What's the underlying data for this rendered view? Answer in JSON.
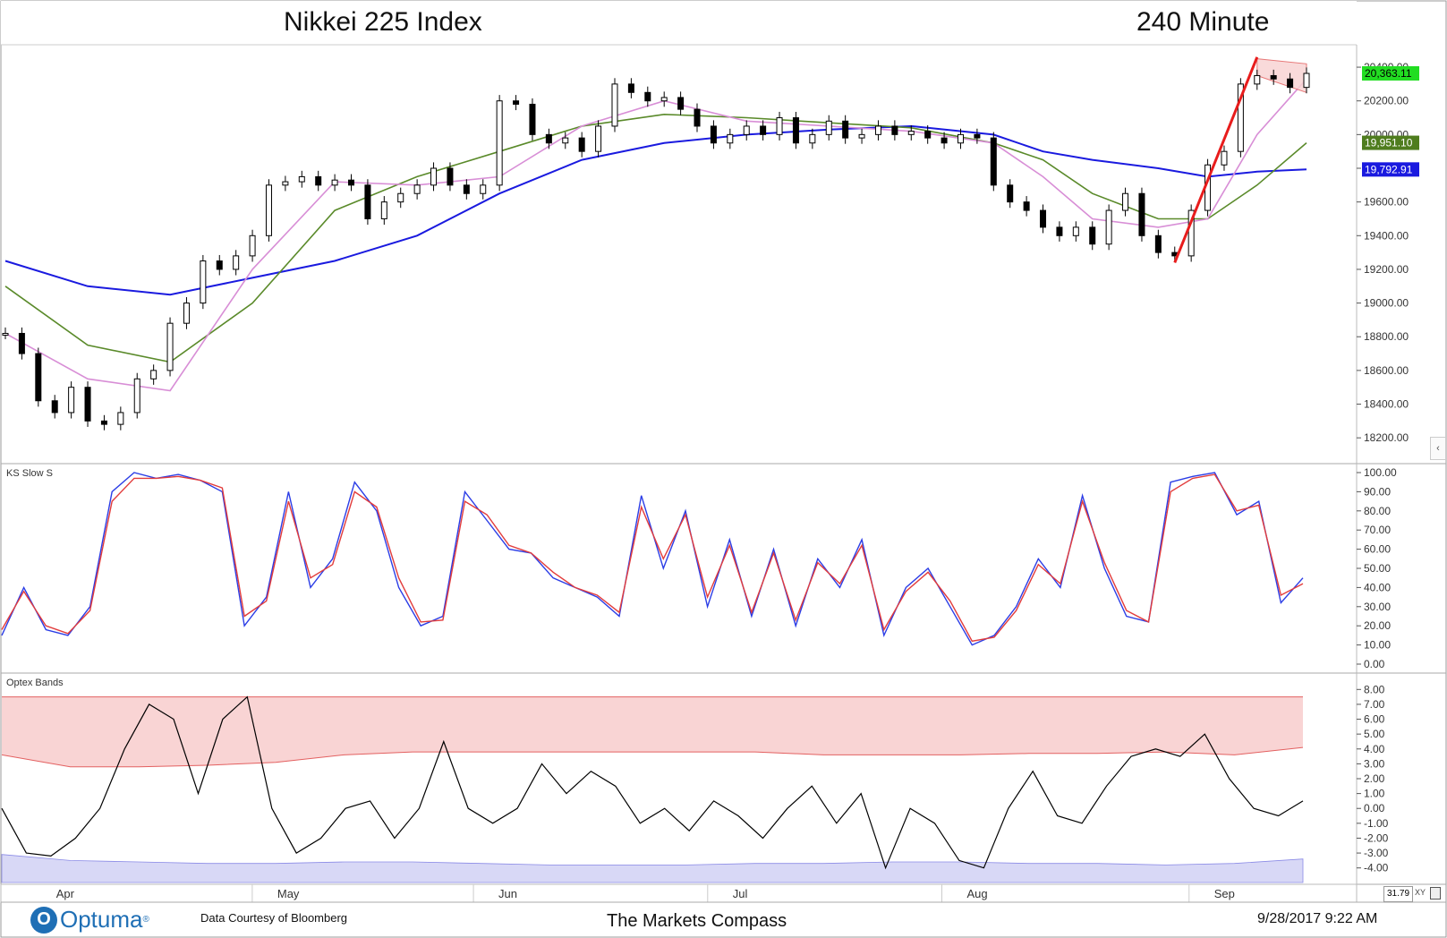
{
  "header": {
    "title": "Nikkei 225 Index",
    "timeframe": "240 Minute"
  },
  "footer": {
    "logo_text": "Optuma",
    "logo_mark": "O",
    "logo_reg": "®",
    "source": "Data Courtesy of Bloomberg",
    "brand": "The Markets Compass",
    "datetime": "9/28/2017 9:22 AM",
    "zoom": "31.79",
    "xy": "XY"
  },
  "colors": {
    "price_line": "#000000",
    "ma_short": "#d88ed6",
    "ma_mid": "#5a8a2a",
    "ma_long": "#1a1adf",
    "stoch_k": "#2b3de6",
    "stoch_d": "#e23c3c",
    "band_upper_fill": "#f9d4d4",
    "band_upper_line": "#e36060",
    "band_lower_fill": "#d8d8f6",
    "trend_line": "#e81c1c",
    "label_green_bright": "#22dd22",
    "label_green_dark": "#4f7d1e",
    "label_blue": "#1a1adf"
  },
  "chart_data": [
    {
      "type": "candlestick",
      "name": "price",
      "ylim": [
        18100,
        20480
      ],
      "yticks": [
        "18200.00",
        "18400.00",
        "18600.00",
        "18800.00",
        "19000.00",
        "19200.00",
        "19400.00",
        "19600.00",
        "19800.00",
        "20000.00",
        "20200.00",
        "20400.00"
      ],
      "x_months": [
        "Apr",
        "May",
        "Jun",
        "Jul",
        "Aug",
        "Sep"
      ],
      "x_month_positions": [
        0.05,
        0.22,
        0.39,
        0.57,
        0.75,
        0.94
      ],
      "close_path": [
        [
          0,
          18820
        ],
        [
          1,
          18700
        ],
        [
          2,
          18420
        ],
        [
          3,
          18350
        ],
        [
          4,
          18500
        ],
        [
          5,
          18300
        ],
        [
          6,
          18280
        ],
        [
          7,
          18350
        ],
        [
          8,
          18550
        ],
        [
          9,
          18600
        ],
        [
          10,
          18880
        ],
        [
          11,
          19000
        ],
        [
          12,
          19250
        ],
        [
          13,
          19200
        ],
        [
          14,
          19280
        ],
        [
          15,
          19400
        ],
        [
          16,
          19700
        ],
        [
          17,
          19720
        ],
        [
          18,
          19750
        ],
        [
          19,
          19700
        ],
        [
          20,
          19730
        ],
        [
          21,
          19700
        ],
        [
          22,
          19500
        ],
        [
          23,
          19600
        ],
        [
          24,
          19650
        ],
        [
          25,
          19700
        ],
        [
          26,
          19800
        ],
        [
          27,
          19700
        ],
        [
          28,
          19650
        ],
        [
          29,
          19700
        ],
        [
          30,
          20200
        ],
        [
          31,
          20180
        ],
        [
          32,
          20000
        ],
        [
          33,
          19950
        ],
        [
          34,
          19980
        ],
        [
          35,
          19900
        ],
        [
          36,
          20050
        ],
        [
          37,
          20300
        ],
        [
          38,
          20250
        ],
        [
          39,
          20200
        ],
        [
          40,
          20220
        ],
        [
          41,
          20150
        ],
        [
          42,
          20050
        ],
        [
          43,
          19950
        ],
        [
          44,
          20000
        ],
        [
          45,
          20050
        ],
        [
          46,
          20000
        ],
        [
          47,
          20100
        ],
        [
          48,
          19950
        ],
        [
          49,
          20000
        ],
        [
          50,
          20080
        ],
        [
          51,
          19980
        ],
        [
          52,
          20000
        ],
        [
          53,
          20050
        ],
        [
          54,
          20000
        ],
        [
          55,
          20020
        ],
        [
          56,
          19980
        ],
        [
          57,
          19950
        ],
        [
          58,
          20000
        ],
        [
          59,
          19980
        ],
        [
          60,
          19700
        ],
        [
          61,
          19600
        ],
        [
          62,
          19550
        ],
        [
          63,
          19450
        ],
        [
          64,
          19400
        ],
        [
          65,
          19450
        ],
        [
          66,
          19350
        ],
        [
          67,
          19550
        ],
        [
          68,
          19650
        ],
        [
          69,
          19400
        ],
        [
          70,
          19300
        ],
        [
          71,
          19280
        ],
        [
          72,
          19550
        ],
        [
          73,
          19820
        ],
        [
          74,
          19900
        ],
        [
          75,
          20300
        ],
        [
          76,
          20350
        ],
        [
          77,
          20330
        ],
        [
          78,
          20280
        ],
        [
          79,
          20363.11
        ]
      ],
      "ma_short": [
        [
          0,
          18820
        ],
        [
          5,
          18550
        ],
        [
          10,
          18480
        ],
        [
          15,
          19200
        ],
        [
          20,
          19720
        ],
        [
          25,
          19700
        ],
        [
          30,
          19750
        ],
        [
          35,
          20050
        ],
        [
          40,
          20200
        ],
        [
          45,
          20080
        ],
        [
          50,
          20050
        ],
        [
          55,
          20020
        ],
        [
          60,
          19950
        ],
        [
          63,
          19750
        ],
        [
          66,
          19500
        ],
        [
          70,
          19450
        ],
        [
          73,
          19500
        ],
        [
          76,
          20000
        ],
        [
          79,
          20330
        ]
      ],
      "ma_mid": [
        [
          0,
          19100
        ],
        [
          5,
          18750
        ],
        [
          10,
          18650
        ],
        [
          15,
          19000
        ],
        [
          20,
          19550
        ],
        [
          25,
          19750
        ],
        [
          30,
          19900
        ],
        [
          35,
          20050
        ],
        [
          40,
          20120
        ],
        [
          45,
          20100
        ],
        [
          50,
          20070
        ],
        [
          55,
          20040
        ],
        [
          60,
          19950
        ],
        [
          63,
          19850
        ],
        [
          66,
          19650
        ],
        [
          70,
          19500
        ],
        [
          73,
          19500
        ],
        [
          76,
          19700
        ],
        [
          79,
          19951.1
        ]
      ],
      "ma_long": [
        [
          0,
          19250
        ],
        [
          5,
          19100
        ],
        [
          10,
          19050
        ],
        [
          15,
          19150
        ],
        [
          20,
          19250
        ],
        [
          25,
          19400
        ],
        [
          30,
          19650
        ],
        [
          35,
          19850
        ],
        [
          40,
          19950
        ],
        [
          45,
          20000
        ],
        [
          50,
          20030
        ],
        [
          55,
          20050
        ],
        [
          60,
          20000
        ],
        [
          63,
          19900
        ],
        [
          66,
          19850
        ],
        [
          70,
          19800
        ],
        [
          73,
          19750
        ],
        [
          76,
          19780
        ],
        [
          79,
          19792.91
        ]
      ],
      "trend_line": [
        [
          71,
          19240
        ],
        [
          76,
          20460
        ]
      ],
      "channel": [
        [
          76,
          20450
        ],
        [
          79,
          20420
        ],
        [
          79,
          20250
        ],
        [
          76,
          20350
        ]
      ],
      "labels": [
        {
          "value": 20363.11,
          "text": "20,363.11",
          "style": "green_bright"
        },
        {
          "value": 19951.1,
          "text": "19,951.10",
          "style": "green_dark"
        },
        {
          "value": 19792.91,
          "text": "19,792.91",
          "style": "blue"
        }
      ]
    },
    {
      "type": "line",
      "name": "KS Slow S",
      "title": "KS Slow S",
      "ylim": [
        0,
        100
      ],
      "yticks": [
        "100.00",
        "90.00",
        "80.00",
        "70.00",
        "60.00",
        "50.00",
        "40.00",
        "30.00",
        "20.00",
        "10.00",
        "0.00"
      ],
      "series": [
        {
          "key": "k",
          "values": [
            15,
            40,
            18,
            15,
            30,
            90,
            100,
            97,
            99,
            96,
            90,
            20,
            35,
            90,
            40,
            55,
            95,
            80,
            40,
            20,
            25,
            90,
            75,
            60,
            58,
            45,
            40,
            35,
            25,
            88,
            50,
            80,
            30,
            65,
            25,
            60,
            20,
            55,
            40,
            65,
            15,
            40,
            50,
            30,
            10,
            15,
            30,
            55,
            40,
            88,
            50,
            25,
            22,
            95,
            98,
            100,
            78,
            85,
            32,
            45
          ]
        },
        {
          "key": "d",
          "values": [
            18,
            38,
            20,
            16,
            28,
            85,
            97,
            97,
            98,
            96,
            92,
            25,
            33,
            85,
            45,
            52,
            90,
            82,
            45,
            22,
            23,
            85,
            78,
            62,
            58,
            48,
            40,
            36,
            27,
            82,
            55,
            78,
            35,
            62,
            27,
            58,
            23,
            53,
            42,
            62,
            18,
            38,
            48,
            33,
            12,
            14,
            28,
            52,
            42,
            85,
            53,
            28,
            22,
            90,
            97,
            99,
            80,
            83,
            36,
            42
          ]
        }
      ]
    },
    {
      "type": "line",
      "name": "Optex Bands",
      "title": "Optex Bands",
      "ylim": [
        -4.5,
        8.5
      ],
      "yticks": [
        "8.00",
        "7.00",
        "6.00",
        "5.00",
        "4.00",
        "3.00",
        "2.00",
        "1.00",
        "0.00",
        "-1.00",
        "-2.00",
        "-3.00",
        "-4.00"
      ],
      "series": [
        {
          "key": "osc",
          "values": [
            0,
            -3,
            -3.2,
            -2,
            0,
            4,
            7,
            6,
            1,
            6,
            7.5,
            0,
            -3,
            -2,
            0,
            0.5,
            -2,
            0,
            4.5,
            0,
            -1,
            0,
            3,
            1,
            2.5,
            1.5,
            -1,
            0,
            -1.5,
            0.5,
            -0.5,
            -2,
            0,
            1.5,
            -1,
            1,
            -4,
            0,
            -1,
            -3.5,
            -4,
            0,
            2.5,
            -0.5,
            -1,
            1.5,
            3.5,
            4,
            3.5,
            5,
            2,
            0,
            -0.5,
            0.5
          ]
        },
        {
          "key": "upper_band",
          "values": [
            3.6,
            2.8,
            2.8,
            2.9,
            3.1,
            3.6,
            3.8,
            3.8,
            3.8,
            3.8,
            3.8,
            3.8,
            3.6,
            3.6,
            3.6,
            3.7,
            3.7,
            3.8,
            3.6,
            4.1
          ]
        },
        {
          "key": "lower_band",
          "values": [
            -3.1,
            -3.5,
            -3.6,
            -3.7,
            -3.7,
            -3.6,
            -3.6,
            -3.7,
            -3.8,
            -3.8,
            -3.8,
            -3.7,
            -3.7,
            -3.6,
            -3.6,
            -3.7,
            -3.7,
            -3.8,
            -3.7,
            -3.4
          ]
        }
      ],
      "band_top": 7.5
    }
  ]
}
